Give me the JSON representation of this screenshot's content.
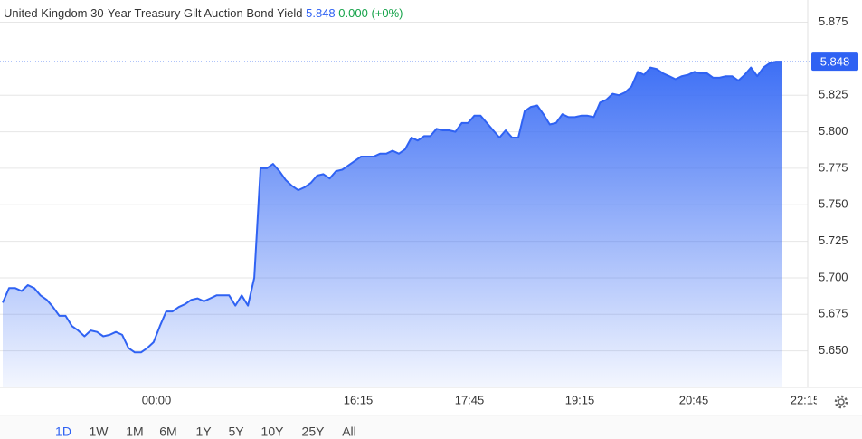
{
  "chart_data": {
    "type": "area",
    "title": "United Kingdom 30-Year Treasury Gilt Auction Bond Yield",
    "last_value": 5.848,
    "change": "0.000 (+0%)",
    "color": "#2f62f3",
    "ylim": [
      5.625,
      5.884
    ],
    "yticks": [
      {
        "value": 5.65,
        "label": "5.650"
      },
      5.675,
      {
        "value": 5.7,
        "label": "5.700"
      },
      5.725,
      {
        "value": 5.75,
        "label": "5.750"
      },
      5.775,
      {
        "value": 5.8,
        "label": "5.800"
      },
      5.825,
      5.875
    ],
    "grid": true,
    "xticks": [
      "00:00",
      "16:15",
      "17:45",
      "19:15",
      "20:45",
      "22:15"
    ],
    "values": [
      5.683,
      5.693,
      5.693,
      5.691,
      5.695,
      5.693,
      5.688,
      5.685,
      5.68,
      5.674,
      5.674,
      5.667,
      5.664,
      5.66,
      5.664,
      5.663,
      5.66,
      5.661,
      5.663,
      5.661,
      5.652,
      5.649,
      5.649,
      5.652,
      5.656,
      5.667,
      5.677,
      5.677,
      5.68,
      5.682,
      5.685,
      5.686,
      5.684,
      5.686,
      5.688,
      5.688,
      5.688,
      5.681,
      5.688,
      5.681,
      5.7,
      5.775,
      5.775,
      5.778,
      5.773,
      5.767,
      5.763,
      5.76,
      5.762,
      5.765,
      5.77,
      5.771,
      5.768,
      5.773,
      5.774,
      5.777,
      5.78,
      5.783,
      5.783,
      5.783,
      5.785,
      5.785,
      5.787,
      5.785,
      5.788,
      5.796,
      5.794,
      5.797,
      5.797,
      5.802,
      5.801,
      5.801,
      5.8,
      5.806,
      5.806,
      5.811,
      5.811,
      5.806,
      5.801,
      5.796,
      5.801,
      5.796,
      5.796,
      5.814,
      5.817,
      5.818,
      5.812,
      5.805,
      5.806,
      5.812,
      5.81,
      5.81,
      5.811,
      5.811,
      5.81,
      5.82,
      5.822,
      5.826,
      5.825,
      5.827,
      5.831,
      5.841,
      5.839,
      5.844,
      5.843,
      5.84,
      5.838,
      5.836,
      5.838,
      5.839,
      5.841,
      5.84,
      5.84,
      5.837,
      5.837,
      5.838,
      5.838,
      5.835,
      5.839,
      5.844,
      5.838,
      5.844,
      5.847,
      5.848,
      5.848
    ],
    "ranges": [
      "1D",
      "1W",
      "1M",
      "6M",
      "1Y",
      "5Y",
      "10Y",
      "25Y",
      "All"
    ],
    "active_range": 0
  }
}
